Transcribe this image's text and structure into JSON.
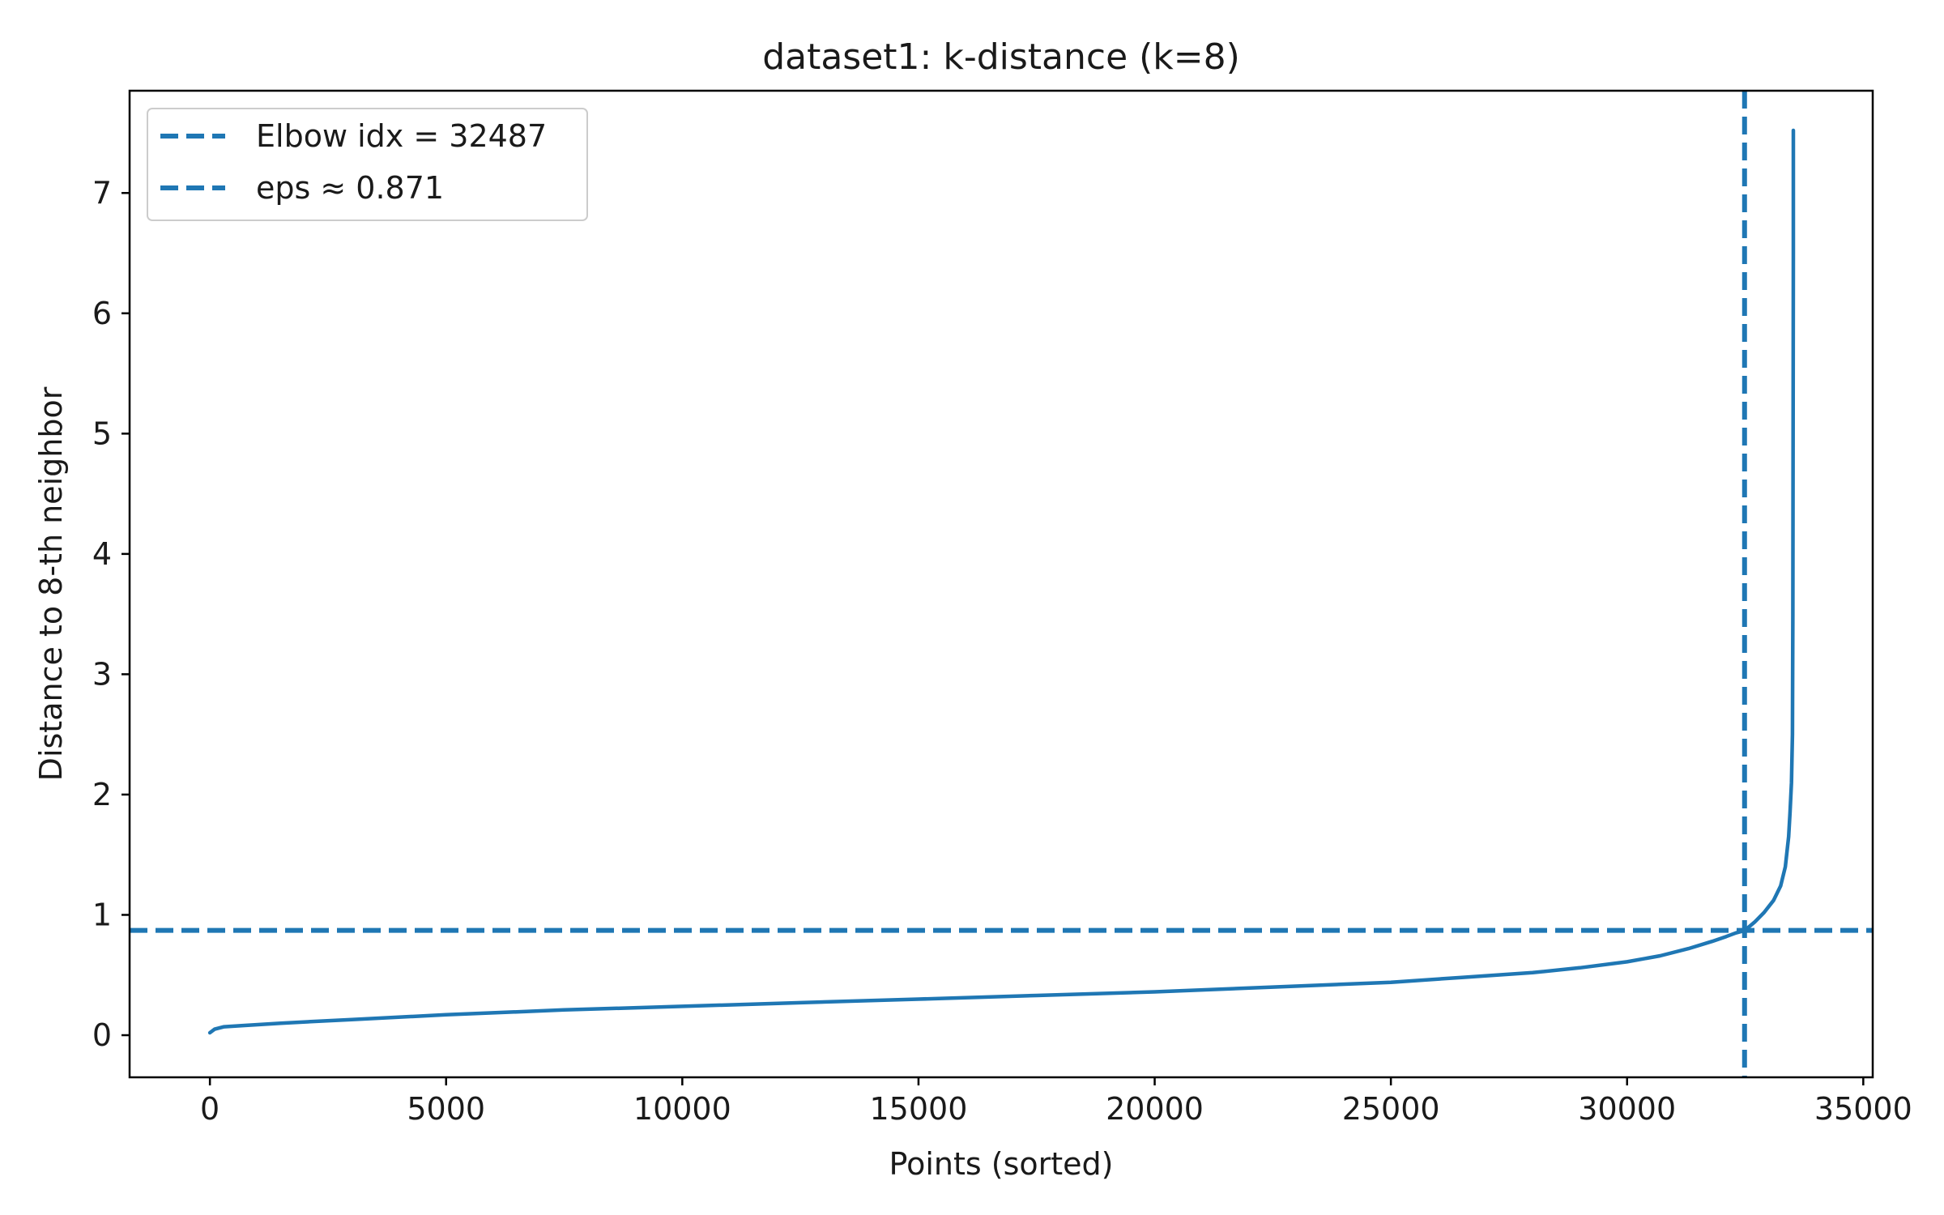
{
  "chart_data": {
    "type": "line",
    "title": "dataset1: k-distance (k=8)",
    "xlabel": "Points (sorted)",
    "ylabel": "Distance to 8-th neighbor",
    "xlim": [
      -1700,
      35200
    ],
    "ylim": [
      -0.35,
      7.85
    ],
    "xticks": [
      0,
      5000,
      10000,
      15000,
      20000,
      25000,
      30000,
      35000
    ],
    "xtick_labels": [
      "0",
      "5000",
      "10000",
      "15000",
      "20000",
      "25000",
      "30000",
      "35000"
    ],
    "yticks": [
      0,
      1,
      2,
      3,
      4,
      5,
      6,
      7
    ],
    "ytick_labels": [
      "0",
      "1",
      "2",
      "3",
      "4",
      "5",
      "6",
      "7"
    ],
    "grid": false,
    "legend_position": "top-left",
    "line_color": "#1f77b4",
    "series": [
      {
        "x": [
          0,
          100,
          300,
          700,
          1500,
          3000,
          5000,
          7500,
          10000,
          12500,
          15000,
          17500,
          20000,
          22500,
          25000,
          26500,
          28000,
          29000,
          30000,
          30700,
          31300,
          31800,
          32100,
          32300,
          32487,
          32700,
          32900,
          33100,
          33250,
          33350,
          33420,
          33450,
          33480,
          33500,
          33510,
          33515,
          33520,
          33520
        ],
        "y": [
          0.02,
          0.05,
          0.07,
          0.08,
          0.1,
          0.13,
          0.17,
          0.21,
          0.24,
          0.27,
          0.3,
          0.33,
          0.36,
          0.4,
          0.44,
          0.48,
          0.52,
          0.56,
          0.61,
          0.66,
          0.72,
          0.78,
          0.82,
          0.85,
          0.87,
          0.94,
          1.02,
          1.12,
          1.24,
          1.4,
          1.65,
          1.85,
          2.1,
          2.5,
          3.5,
          5.0,
          6.5,
          7.52
        ]
      }
    ],
    "reference_lines": [
      {
        "orientation": "vertical",
        "value": 32487,
        "label": "Elbow idx = 32487",
        "style": "dashed"
      },
      {
        "orientation": "horizontal",
        "value": 0.871,
        "label": "eps ≈ 0.871",
        "style": "dashed"
      }
    ]
  }
}
